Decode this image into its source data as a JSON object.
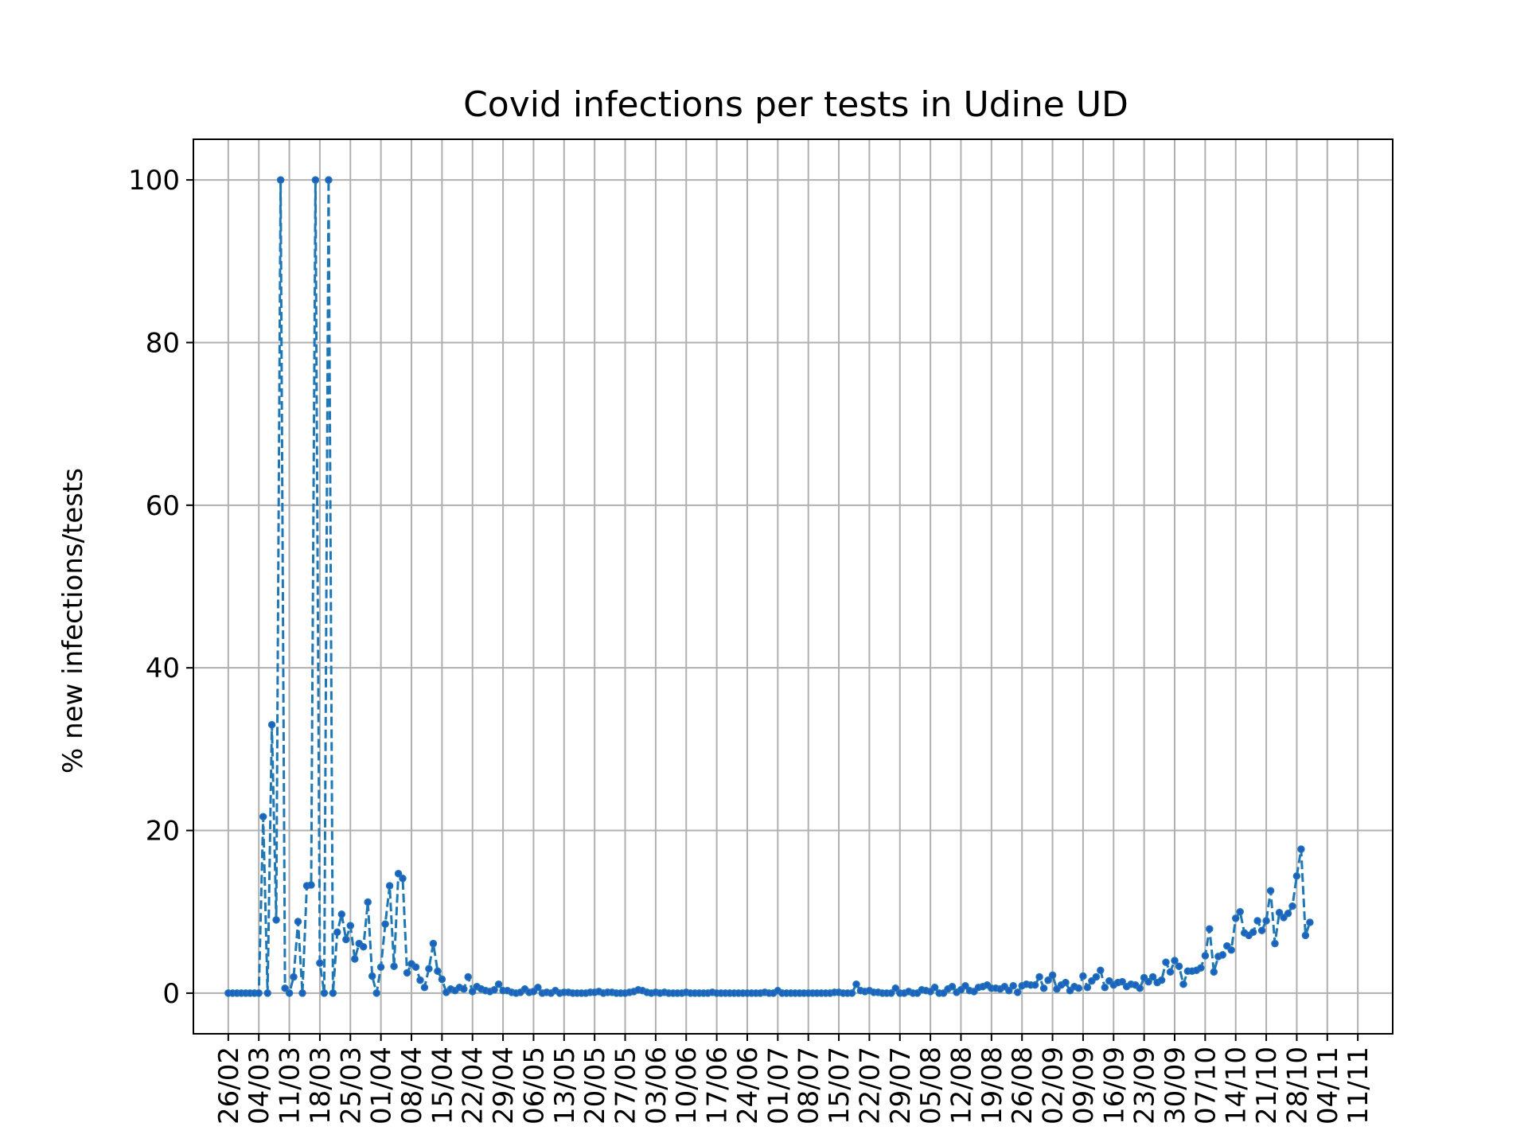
{
  "chart_data": {
    "type": "line",
    "title": "Covid infections per tests in Udine UD",
    "xlabel": "",
    "ylabel": "% new infections/tests",
    "x_start": "2020-02-26",
    "x_end": "2020-11-14",
    "xlim": [
      "2020-02-18",
      "2020-11-19"
    ],
    "ylim": [
      -5,
      105
    ],
    "yticks": [
      0,
      20,
      40,
      60,
      80,
      100
    ],
    "xtick_labels": [
      "26/02",
      "04/03",
      "11/03",
      "18/03",
      "25/03",
      "01/04",
      "08/04",
      "15/04",
      "22/04",
      "29/04",
      "06/05",
      "13/05",
      "20/05",
      "27/05",
      "03/06",
      "10/06",
      "17/06",
      "24/06",
      "01/07",
      "08/07",
      "15/07",
      "22/07",
      "29/07",
      "05/08",
      "12/08",
      "19/08",
      "26/08",
      "02/09",
      "09/09",
      "16/09",
      "23/09",
      "30/09",
      "07/10",
      "14/10",
      "21/10",
      "28/10",
      "04/11",
      "11/11"
    ],
    "grid": true,
    "line_style": "dashed",
    "marker": "dot",
    "colors": {
      "line": "#1f77b4",
      "marker": "#1f5fc4",
      "grid": "#b0b0b0"
    },
    "series": [
      {
        "values": [
          0,
          0,
          0,
          0,
          0,
          0,
          0,
          0,
          21.7,
          0,
          33,
          9,
          100,
          0.6,
          0,
          2,
          8.8,
          0,
          13.2,
          13.3,
          100,
          3.7,
          0,
          100,
          0,
          7.5,
          9.7,
          6.6,
          8.3,
          4.2,
          6.1,
          5.7,
          11.2,
          2.1,
          0,
          3.2,
          8.5,
          13.2,
          3.3,
          14.7,
          14.1,
          2.5,
          3.6,
          3.2,
          1.6,
          0.7,
          3,
          6.1,
          2.7,
          1.7,
          0.1,
          0.5,
          0.3,
          0.7,
          0.5,
          2,
          0.2,
          0.8,
          0.5,
          0.3,
          0.2,
          0.4,
          1.1,
          0.3,
          0.3,
          0.1,
          0,
          0.1,
          0.5,
          0.1,
          0.2,
          0.7,
          0,
          0.1,
          0,
          0.3,
          0,
          0.1,
          0.1,
          0,
          0,
          0,
          0,
          0.1,
          0.1,
          0.2,
          0,
          0.1,
          0.1,
          0,
          0,
          0,
          0.1,
          0.2,
          0.4,
          0.3,
          0.1,
          0,
          0.1,
          0,
          0.1,
          0,
          0,
          0,
          0,
          0.1,
          0,
          0,
          0,
          0,
          0,
          0.1,
          0,
          0,
          0,
          0,
          0,
          0,
          0,
          0,
          0,
          0,
          0,
          0.1,
          0,
          0,
          0.3,
          0,
          0,
          0,
          0,
          0,
          0,
          0,
          0,
          0,
          0,
          0,
          0,
          0.1,
          0.1,
          0,
          0,
          0,
          1.1,
          0.3,
          0.2,
          0.3,
          0.1,
          0.1,
          0,
          0,
          0,
          0.6,
          0,
          0,
          0.2,
          0,
          0,
          0.4,
          0.3,
          0.2,
          0.7,
          0,
          0,
          0.5,
          0.8,
          0.1,
          0.4,
          0.9,
          0.3,
          0.2,
          0.7,
          0.8,
          1,
          0.6,
          0.6,
          0.5,
          0.8,
          0.3,
          0.9,
          0.1,
          0.9,
          1.1,
          1,
          1,
          2,
          0.6,
          1.6,
          2.2,
          0.5,
          1,
          1.3,
          0.3,
          0.8,
          0.6,
          2.1,
          0.7,
          1.5,
          2,
          2.8,
          0.7,
          1.5,
          1,
          1.3,
          1.4,
          0.8,
          1.1,
          1,
          0.6,
          1.9,
          1.4,
          2,
          1.3,
          1.6,
          3.8,
          2.6,
          4,
          3.3,
          1.1,
          2.7,
          2.7,
          2.8,
          3.1,
          4.6,
          7.9,
          2.6,
          4.5,
          4.7,
          5.8,
          5.3,
          9.2,
          10,
          7.4,
          7.1,
          7.5,
          8.9,
          7.7,
          8.9,
          12.6,
          6.1,
          9.9,
          9.3,
          9.8,
          10.7,
          14.4,
          17.7,
          7.1,
          8.7
        ]
      }
    ]
  }
}
